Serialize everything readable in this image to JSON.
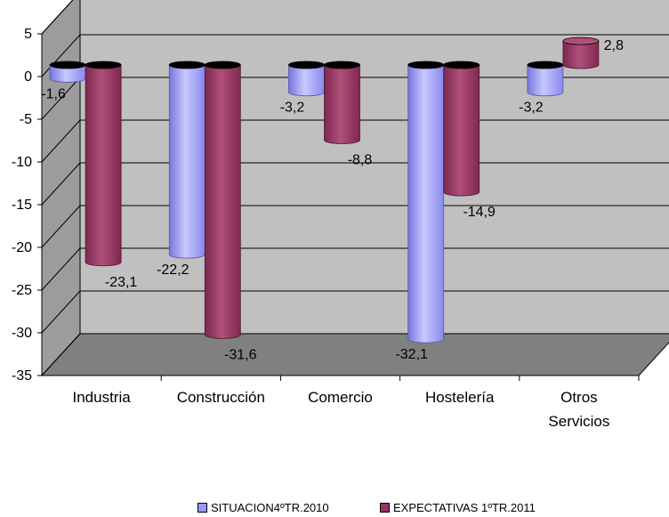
{
  "chart_data": {
    "type": "bar",
    "categories": [
      "Industria",
      "Construcción",
      "Comercio",
      "Hostelería",
      "Otros Servicios"
    ],
    "series": [
      {
        "name": "SITUACION4ºTR.2010",
        "values": [
          -1.6,
          -22.2,
          -3.2,
          -32.1,
          -3.2
        ],
        "labels": [
          "-1,6",
          "-22,2",
          "-3,2",
          "-32,1",
          "-3,2"
        ],
        "color": "#9999FF"
      },
      {
        "name": "EXPECTATIVAS 1ºTR.2011",
        "values": [
          -23.1,
          -31.6,
          -8.8,
          -14.9,
          2.8
        ],
        "labels": [
          "-23,1",
          "-31,6",
          "-8,8",
          "-14,9",
          "2,8"
        ],
        "color": "#993366"
      }
    ],
    "yticks": [
      5,
      0,
      -5,
      -10,
      -15,
      -20,
      -25,
      -30,
      -35
    ],
    "ytick_labels": [
      "5",
      "0",
      "-5",
      "-10",
      "-15",
      "-20",
      "-25",
      "-30",
      "-35"
    ],
    "ylim": [
      -35,
      5
    ],
    "grid": true,
    "wall_color": "#C0C0C0",
    "legend_position": "bottom"
  }
}
